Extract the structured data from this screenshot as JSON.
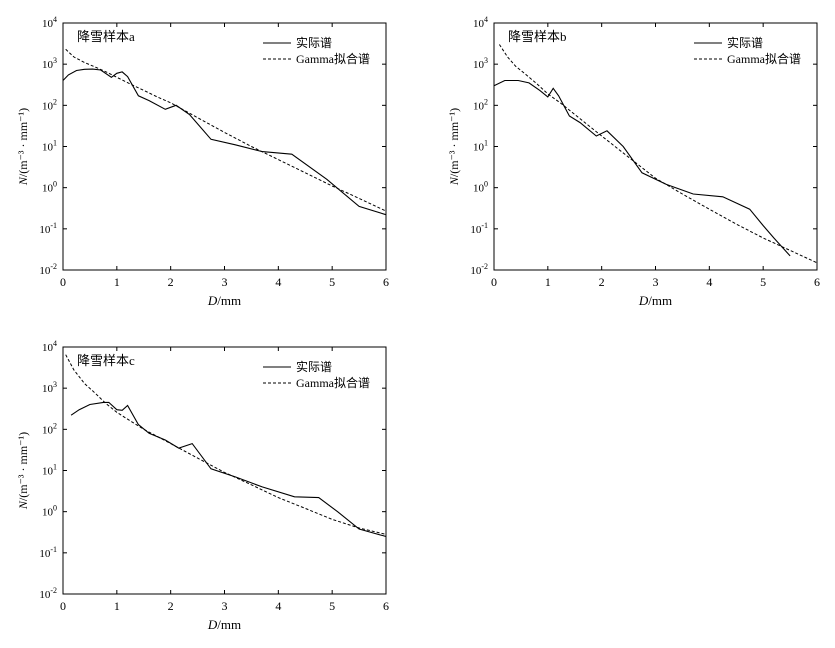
{
  "chart_data": [
    {
      "type": "line",
      "title": "降雪样本a",
      "xlabel_var": "D",
      "xlabel_unit": "/mm",
      "ylabel_var": "N",
      "ylabel_unit": "/(m⁻³ · mm⁻¹)",
      "xlim": [
        0,
        6
      ],
      "ylim_log10": [
        -2,
        4
      ],
      "yscale": "log",
      "grid": false,
      "legend_position": "top-right",
      "x_ticks": [
        "0",
        "1",
        "2",
        "3",
        "4",
        "5",
        "6"
      ],
      "y_ticks": [
        {
          "base": "10",
          "exp": "-2"
        },
        {
          "base": "10",
          "exp": "-1"
        },
        {
          "base": "10",
          "exp": "0"
        },
        {
          "base": "10",
          "exp": "1"
        },
        {
          "base": "10",
          "exp": "2"
        },
        {
          "base": "10",
          "exp": "3"
        },
        {
          "base": "10",
          "exp": "4"
        }
      ],
      "series": [
        {
          "name": "实际谱",
          "style": "solid",
          "x": [
            0.0,
            0.1,
            0.25,
            0.4,
            0.55,
            0.7,
            0.9,
            1.0,
            1.1,
            1.2,
            1.4,
            1.6,
            1.9,
            2.1,
            2.35,
            2.75,
            3.2,
            3.7,
            4.25,
            4.9,
            5.5,
            6.0
          ],
          "y": [
            400,
            550,
            700,
            750,
            760,
            720,
            480,
            600,
            650,
            500,
            170,
            130,
            80,
            100,
            60,
            15,
            11,
            7.5,
            6.5,
            1.6,
            0.35,
            0.22
          ]
        },
        {
          "name": "Gamma拟合谱",
          "style": "dashed",
          "x": [
            0.05,
            0.2,
            0.4,
            0.6,
            0.8,
            1.0,
            1.25,
            1.5,
            1.75,
            2.0,
            2.5,
            3.0,
            3.5,
            4.0,
            4.5,
            5.0,
            5.5,
            6.0
          ],
          "y": [
            2300,
            1500,
            1100,
            850,
            650,
            480,
            330,
            230,
            160,
            115,
            50,
            22,
            10,
            4.8,
            2.3,
            1.1,
            0.55,
            0.27
          ]
        }
      ]
    },
    {
      "type": "line",
      "title": "降雪样本b",
      "xlabel_var": "D",
      "xlabel_unit": "/mm",
      "ylabel_var": "N",
      "ylabel_unit": "/(m⁻³ · mm⁻¹)",
      "xlim": [
        0,
        6
      ],
      "ylim_log10": [
        -2,
        4
      ],
      "yscale": "log",
      "grid": false,
      "legend_position": "top-right",
      "x_ticks": [
        "0",
        "1",
        "2",
        "3",
        "4",
        "5",
        "6"
      ],
      "y_ticks": [
        {
          "base": "10",
          "exp": "-2"
        },
        {
          "base": "10",
          "exp": "-1"
        },
        {
          "base": "10",
          "exp": "0"
        },
        {
          "base": "10",
          "exp": "1"
        },
        {
          "base": "10",
          "exp": "2"
        },
        {
          "base": "10",
          "exp": "3"
        },
        {
          "base": "10",
          "exp": "4"
        }
      ],
      "series": [
        {
          "name": "实际谱",
          "style": "solid",
          "x": [
            0.0,
            0.2,
            0.45,
            0.65,
            0.85,
            1.0,
            1.1,
            1.2,
            1.4,
            1.6,
            1.9,
            2.1,
            2.4,
            2.75,
            3.2,
            3.7,
            4.25,
            4.75,
            5.0,
            5.2,
            5.5
          ],
          "y": [
            300,
            400,
            400,
            350,
            230,
            160,
            260,
            170,
            55,
            38,
            18,
            24,
            10,
            2.3,
            1.2,
            0.7,
            0.6,
            0.3,
            0.12,
            0.06,
            0.022
          ]
        },
        {
          "name": "Gamma拟合谱",
          "style": "dashed",
          "x": [
            0.1,
            0.25,
            0.4,
            0.6,
            0.8,
            1.0,
            1.25,
            1.5,
            2.0,
            2.5,
            3.0,
            3.5,
            4.0,
            4.5,
            5.0,
            5.5,
            6.0
          ],
          "y": [
            3000,
            1500,
            900,
            550,
            330,
            190,
            110,
            60,
            18,
            5.5,
            1.7,
            0.7,
            0.3,
            0.13,
            0.06,
            0.03,
            0.015
          ]
        }
      ]
    },
    {
      "type": "line",
      "title": "降雪样本c",
      "xlabel_var": "D",
      "xlabel_unit": "/mm",
      "ylabel_var": "N",
      "ylabel_unit": "/(m⁻³ · mm⁻¹)",
      "xlim": [
        0,
        6
      ],
      "ylim_log10": [
        -2,
        4
      ],
      "yscale": "log",
      "grid": false,
      "legend_position": "top-right",
      "x_ticks": [
        "0",
        "1",
        "2",
        "3",
        "4",
        "5",
        "6"
      ],
      "y_ticks": [
        {
          "base": "10",
          "exp": "-2"
        },
        {
          "base": "10",
          "exp": "-1"
        },
        {
          "base": "10",
          "exp": "0"
        },
        {
          "base": "10",
          "exp": "1"
        },
        {
          "base": "10",
          "exp": "2"
        },
        {
          "base": "10",
          "exp": "3"
        },
        {
          "base": "10",
          "exp": "4"
        }
      ],
      "series": [
        {
          "name": "实际谱",
          "style": "solid",
          "x": [
            0.15,
            0.3,
            0.5,
            0.75,
            0.85,
            1.0,
            1.1,
            1.2,
            1.4,
            1.6,
            1.9,
            2.15,
            2.4,
            2.75,
            3.2,
            3.7,
            4.3,
            4.75,
            5.1,
            5.5,
            6.0
          ],
          "y": [
            220,
            300,
            400,
            450,
            450,
            300,
            290,
            380,
            130,
            80,
            55,
            35,
            45,
            11,
            7,
            4,
            2.3,
            2.2,
            1.0,
            0.38,
            0.25
          ]
        },
        {
          "name": "Gamma拟合谱",
          "style": "dashed",
          "x": [
            0.05,
            0.2,
            0.4,
            0.6,
            0.8,
            1.0,
            1.25,
            1.5,
            2.0,
            2.5,
            3.0,
            3.5,
            4.0,
            4.5,
            5.0,
            5.5,
            6.0
          ],
          "y": [
            6500,
            2800,
            1300,
            750,
            420,
            260,
            160,
            100,
            45,
            20,
            9,
            4.5,
            2.2,
            1.2,
            0.65,
            0.4,
            0.28
          ]
        }
      ]
    }
  ]
}
